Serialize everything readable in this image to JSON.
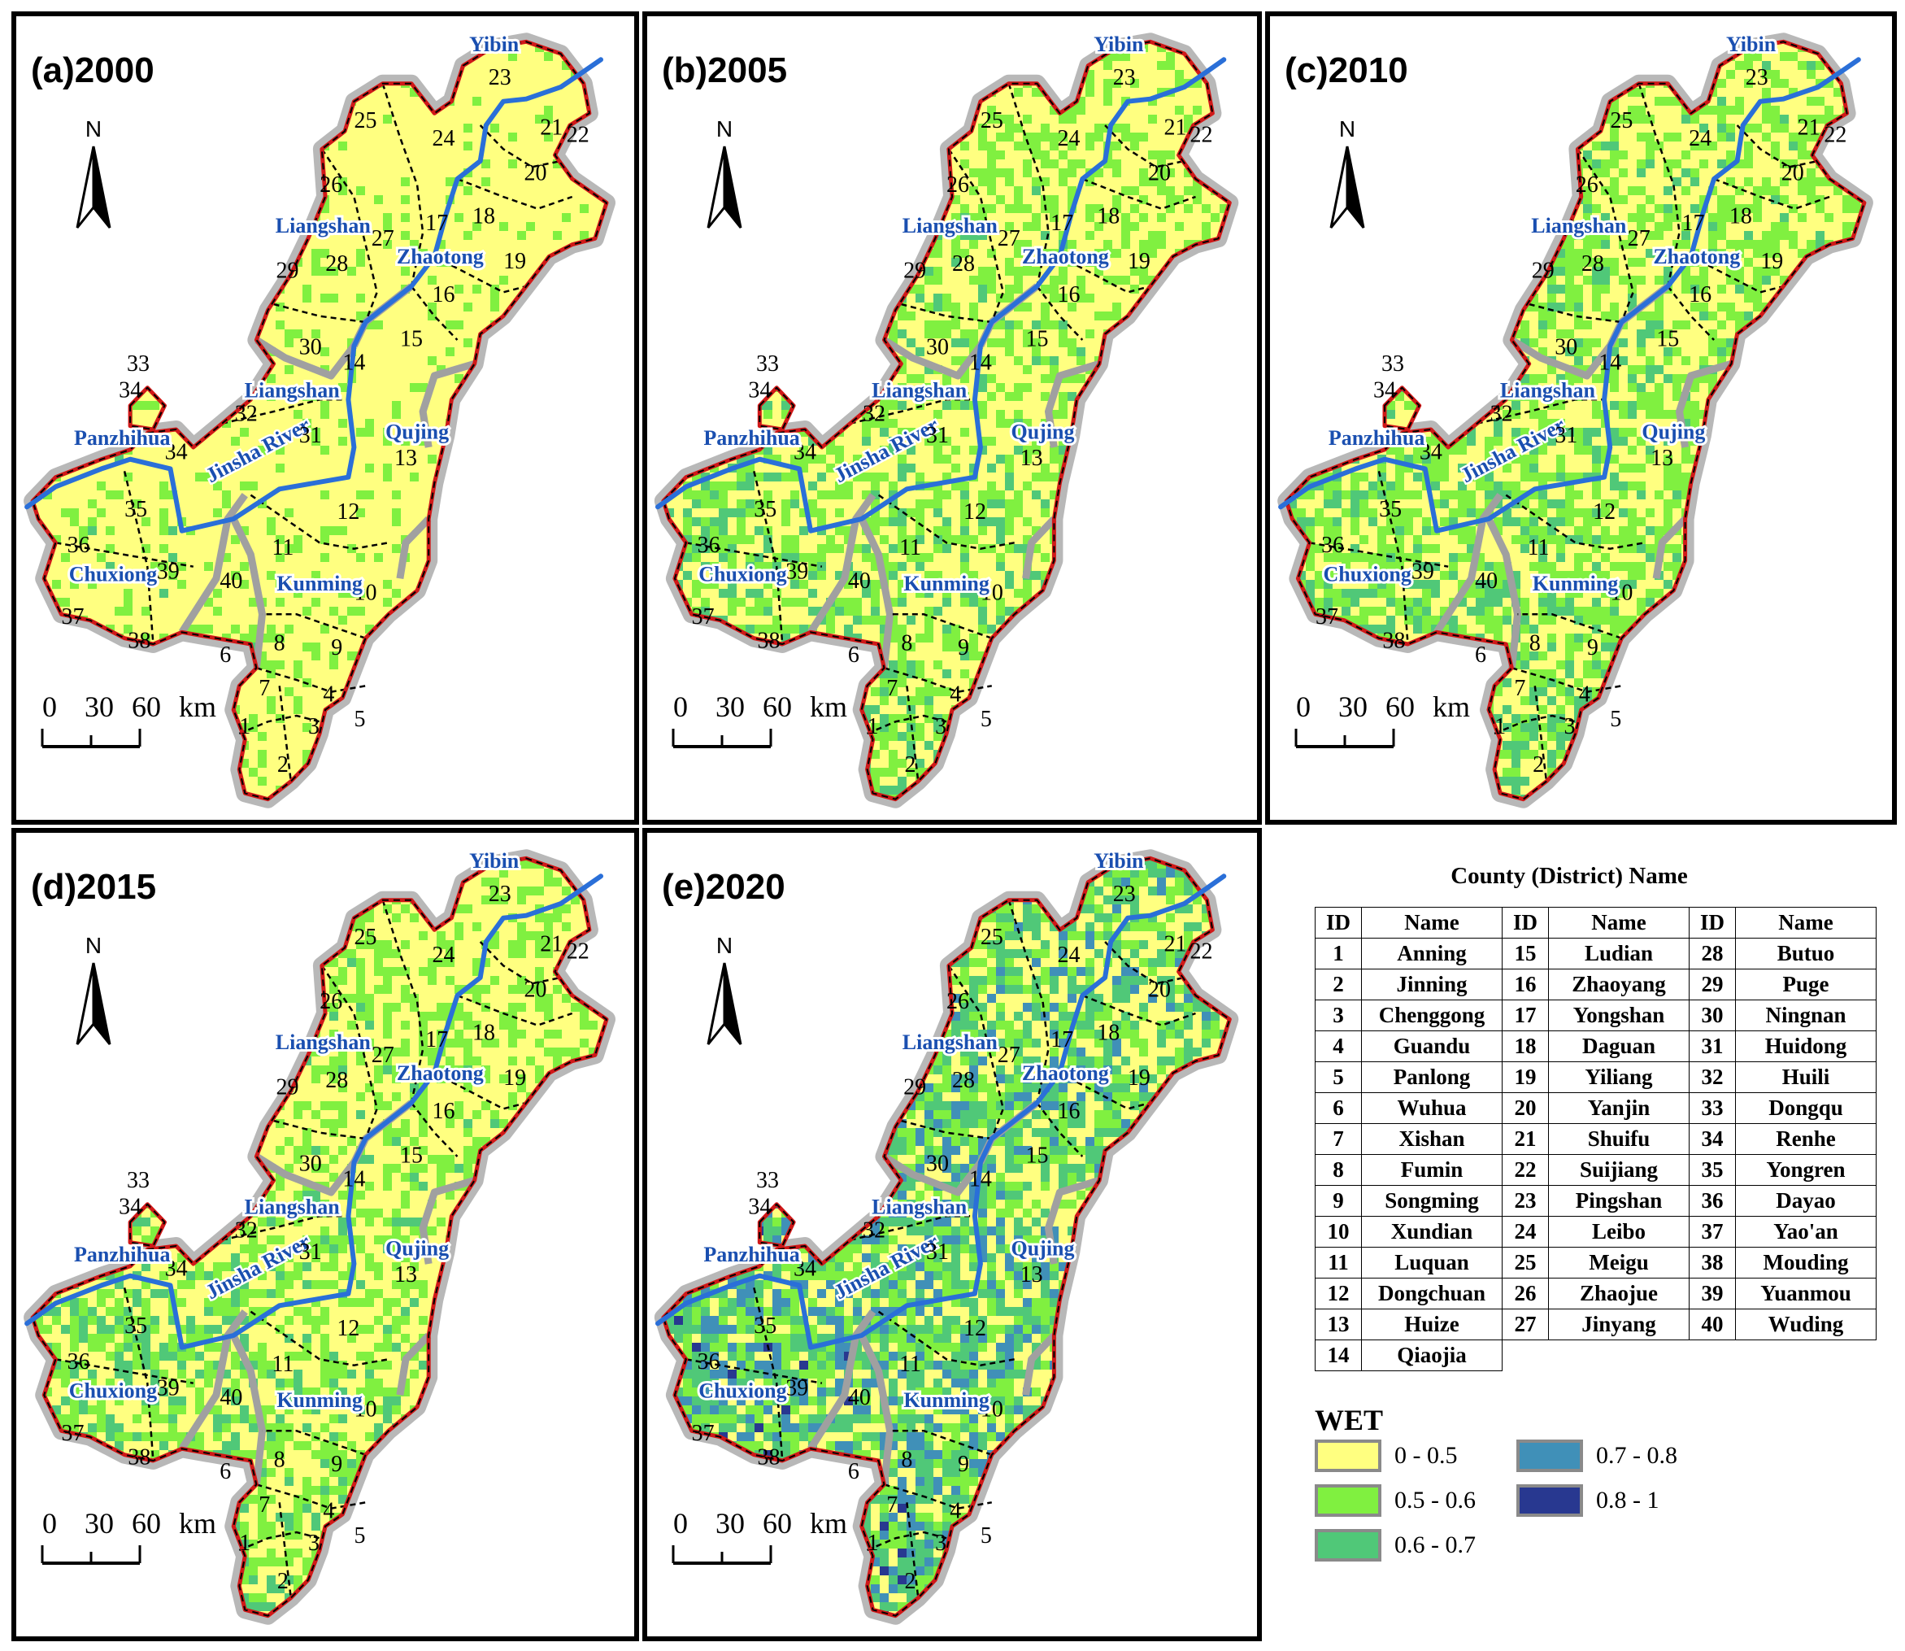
{
  "panels": [
    {
      "id": "a",
      "title": "(a)2000",
      "scheme": 0
    },
    {
      "id": "b",
      "title": "(b)2005",
      "scheme": 1
    },
    {
      "id": "c",
      "title": "(c)2010",
      "scheme": 2
    },
    {
      "id": "d",
      "title": "(d)2015",
      "scheme": 1
    },
    {
      "id": "e",
      "title": "(e)2020",
      "scheme": 3
    }
  ],
  "north_label": "N",
  "scale": {
    "labels": [
      "0",
      "30",
      "60",
      "km"
    ]
  },
  "map_labels": {
    "cities": [
      "Yibin",
      "Liangshan",
      "Zhaotong",
      "Liangshan",
      "Panzhihua",
      "Qujing",
      "Chuxiong",
      "Kunming"
    ],
    "river": "Jinsha River",
    "county_ids": [
      "1",
      "2",
      "3",
      "4",
      "5",
      "6",
      "7",
      "8",
      "9",
      "10",
      "11",
      "12",
      "13",
      "14",
      "15",
      "16",
      "17",
      "18",
      "19",
      "20",
      "21",
      "22",
      "23",
      "24",
      "25",
      "26",
      "27",
      "28",
      "29",
      "30",
      "31",
      "32",
      "33",
      "34",
      "34",
      "35",
      "36",
      "37",
      "38",
      "39",
      "40"
    ]
  },
  "legend": {
    "table_title": "County (District) Name",
    "headers": [
      "ID",
      "Name",
      "ID",
      "Name",
      "ID",
      "Name"
    ],
    "counties": [
      [
        "1",
        "Anning"
      ],
      [
        "2",
        "Jinning"
      ],
      [
        "3",
        "Chenggong"
      ],
      [
        "4",
        "Guandu"
      ],
      [
        "5",
        "Panlong"
      ],
      [
        "6",
        "Wuhua"
      ],
      [
        "7",
        "Xishan"
      ],
      [
        "8",
        "Fumin"
      ],
      [
        "9",
        "Songming"
      ],
      [
        "10",
        "Xundian"
      ],
      [
        "11",
        "Luquan"
      ],
      [
        "12",
        "Dongchuan"
      ],
      [
        "13",
        "Huize"
      ],
      [
        "14",
        "Qiaojia"
      ],
      [
        "15",
        "Ludian"
      ],
      [
        "16",
        "Zhaoyang"
      ],
      [
        "17",
        "Yongshan"
      ],
      [
        "18",
        "Daguan"
      ],
      [
        "19",
        "Yiliang"
      ],
      [
        "20",
        "Yanjin"
      ],
      [
        "21",
        "Shuifu"
      ],
      [
        "22",
        "Suijiang"
      ],
      [
        "23",
        "Pingshan"
      ],
      [
        "24",
        "Leibo"
      ],
      [
        "25",
        "Meigu"
      ],
      [
        "26",
        "Zhaojue"
      ],
      [
        "27",
        "Jinyang"
      ],
      [
        "28",
        "Butuo"
      ],
      [
        "29",
        "Puge"
      ],
      [
        "30",
        "Ningnan"
      ],
      [
        "31",
        "Huidong"
      ],
      [
        "32",
        "Huili"
      ],
      [
        "33",
        "Dongqu"
      ],
      [
        "34",
        "Renhe"
      ],
      [
        "35",
        "Yongren"
      ],
      [
        "36",
        "Dayao"
      ],
      [
        "37",
        "Yao'an"
      ],
      [
        "38",
        "Mouding"
      ],
      [
        "39",
        "Yuanmou"
      ],
      [
        "40",
        "Wuding"
      ]
    ],
    "wet_title": "WET",
    "classes": [
      {
        "label": "0 - 0.5",
        "color": "#ffff80"
      },
      {
        "label": "0.5 - 0.6",
        "color": "#80f040"
      },
      {
        "label": "0.6 - 0.7",
        "color": "#50c878"
      },
      {
        "label": "0.7 - 0.8",
        "color": "#4090b8"
      },
      {
        "label": "0.8 - 1",
        "color": "#283890"
      }
    ]
  },
  "colors": {
    "border_red": "#d01818",
    "river_blue": "#2a6fd8",
    "boundary_gray": "#a0a0a0",
    "label_blue": "#1a4fb0"
  }
}
